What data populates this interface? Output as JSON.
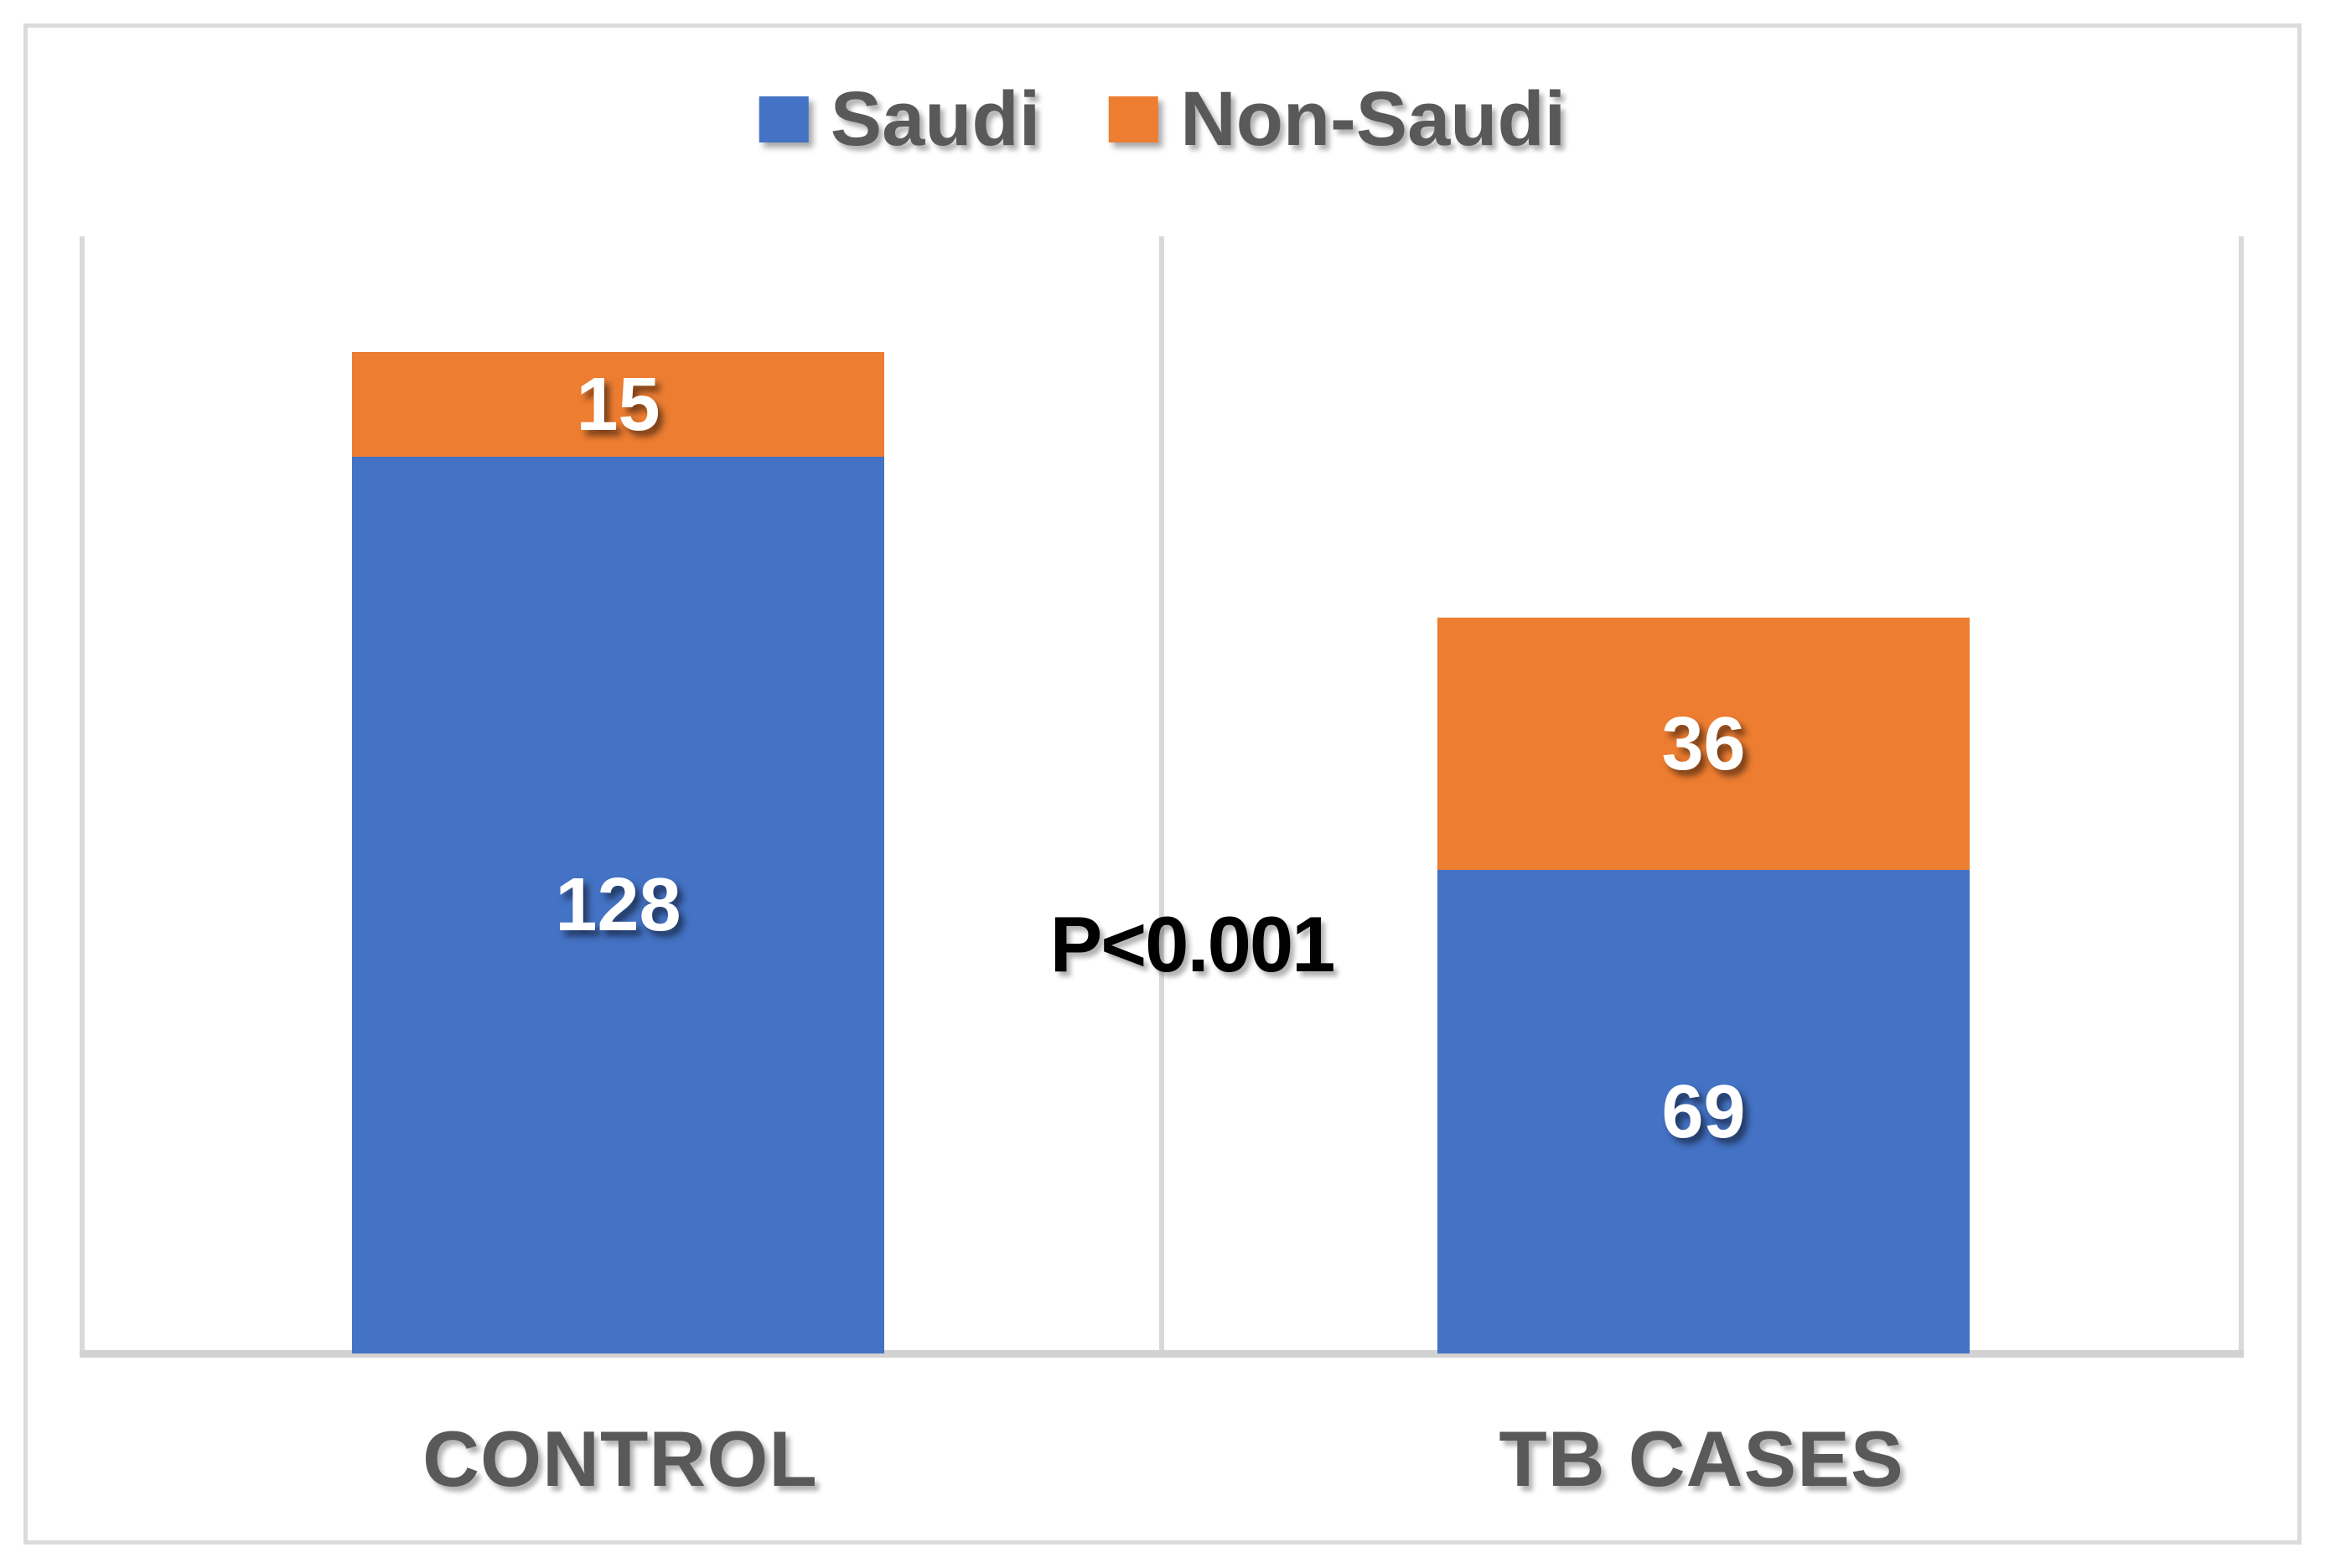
{
  "chart_data": {
    "type": "bar",
    "subtype": "stacked-column",
    "title": "",
    "categories": [
      "CONTROL",
      "TB CASES"
    ],
    "series": [
      {
        "name": "Saudi",
        "color": "#4472C4",
        "values": [
          128,
          69
        ]
      },
      {
        "name": "Non-Saudi",
        "color": "#ED7D31",
        "values": [
          15,
          36
        ]
      }
    ],
    "data_labels_shown": true,
    "annotation": "P<0.001",
    "xlabel": "",
    "ylabel": "",
    "ylim": [
      0,
      160
    ],
    "y_axis_visible": false,
    "grid": "vertical-category-boundary-lines-only",
    "legend_position": "top-center"
  },
  "colors": {
    "blue": "#4472C4",
    "orange": "#ED7D31",
    "gridline": "#D9D9D9",
    "axis_line": "#D2D2D2",
    "frame_border": "#DBDBDB",
    "text_dark": "#595959",
    "annotation_text": "#000000",
    "data_label": "#FFFFFF"
  }
}
